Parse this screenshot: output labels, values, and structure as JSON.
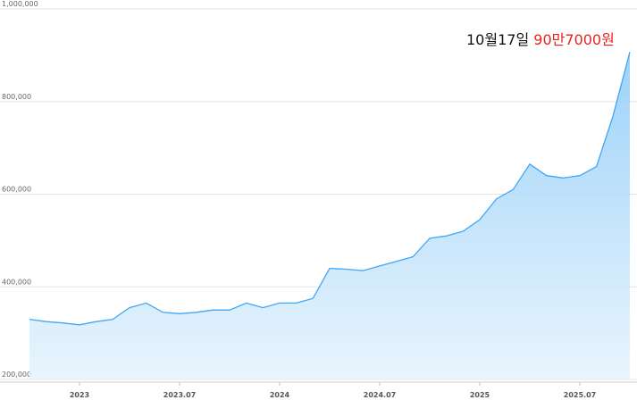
{
  "chart_data": {
    "type": "area",
    "x": [
      "2022.10",
      "2022.11",
      "2022.12",
      "2023.01",
      "2023.02",
      "2023.03",
      "2023.04",
      "2023.05",
      "2023.06",
      "2023.07",
      "2023.08",
      "2023.09",
      "2023.10",
      "2023.11",
      "2023.12",
      "2024.01",
      "2024.02",
      "2024.03",
      "2024.04",
      "2024.05",
      "2024.06",
      "2024.07",
      "2024.08",
      "2024.09",
      "2024.10",
      "2024.11",
      "2024.12",
      "2025.01",
      "2025.02",
      "2025.03",
      "2025.04",
      "2025.05",
      "2025.06",
      "2025.07",
      "2025.08",
      "2025.09",
      "2025.10"
    ],
    "series": [
      {
        "color": "#42a5f5",
        "values": [
          330000,
          325000,
          322000,
          318000,
          325000,
          330000,
          355000,
          365000,
          345000,
          342000,
          345000,
          350000,
          350000,
          365000,
          355000,
          365000,
          365000,
          375000,
          440000,
          438000,
          435000,
          445000,
          455000,
          465000,
          505000,
          510000,
          520000,
          545000,
          590000,
          610000,
          665000,
          640000,
          635000,
          640000,
          660000,
          770000,
          907000
        ]
      }
    ],
    "xlim": [
      "2022.10",
      "2025.10"
    ],
    "xticks": [
      {
        "value": "2023.01",
        "label": "2023"
      },
      "2023.07",
      {
        "value": "2024.01",
        "label": "2024"
      },
      "2024.07",
      {
        "value": "2025.01",
        "label": "2025"
      },
      "2025.07"
    ],
    "ylim": [
      200000,
      1000000
    ],
    "yticks": [
      {
        "value": 200000,
        "label": "200,000"
      },
      {
        "value": 400000,
        "label": "400,000"
      },
      {
        "value": 600000,
        "label": "600,000"
      },
      {
        "value": 800000,
        "label": "800,000"
      },
      {
        "value": 1000000,
        "label": "1,000,000"
      }
    ],
    "grid": true,
    "annotation": {
      "date": "10월17일",
      "price": "90만7000원",
      "price_color": "#e8231f"
    }
  }
}
